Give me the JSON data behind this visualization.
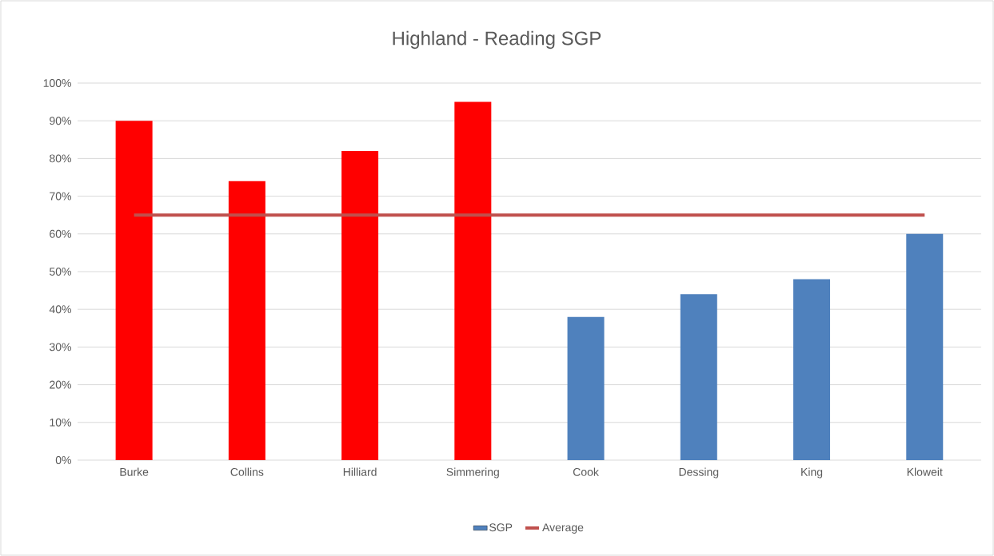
{
  "chart_data": {
    "type": "bar",
    "title": "Highland - Reading SGP",
    "categories": [
      "Burke",
      "Collins",
      "Hilliard",
      "Simmering",
      "Cook",
      "Dessing",
      "King",
      "Kloweit"
    ],
    "series": [
      {
        "name": "SGP",
        "color": "#4f81bd",
        "colors": [
          "#ff0000",
          "#ff0000",
          "#ff0000",
          "#ff0000",
          "#4f81bd",
          "#4f81bd",
          "#4f81bd",
          "#4f81bd"
        ],
        "values": [
          90,
          74,
          82,
          95,
          38,
          44,
          48,
          60
        ]
      },
      {
        "name": "Average",
        "type": "line",
        "color": "#c0504d",
        "values": [
          65,
          65,
          65,
          65,
          65,
          65,
          65,
          65
        ]
      }
    ],
    "ylim": [
      0,
      100
    ],
    "yticks": [
      {
        "value": 0,
        "label": "0%"
      },
      {
        "value": 10,
        "label": "10%"
      },
      {
        "value": 20,
        "label": "20%"
      },
      {
        "value": 30,
        "label": "30%"
      },
      {
        "value": 40,
        "label": "40%"
      },
      {
        "value": 50,
        "label": "50%"
      },
      {
        "value": 60,
        "label": "60%"
      },
      {
        "value": 70,
        "label": "70%"
      },
      {
        "value": 80,
        "label": "80%"
      },
      {
        "value": 90,
        "label": "90%"
      },
      {
        "value": 100,
        "label": "100%"
      }
    ],
    "grid": "y",
    "legend": "bottom",
    "marker": "none"
  }
}
